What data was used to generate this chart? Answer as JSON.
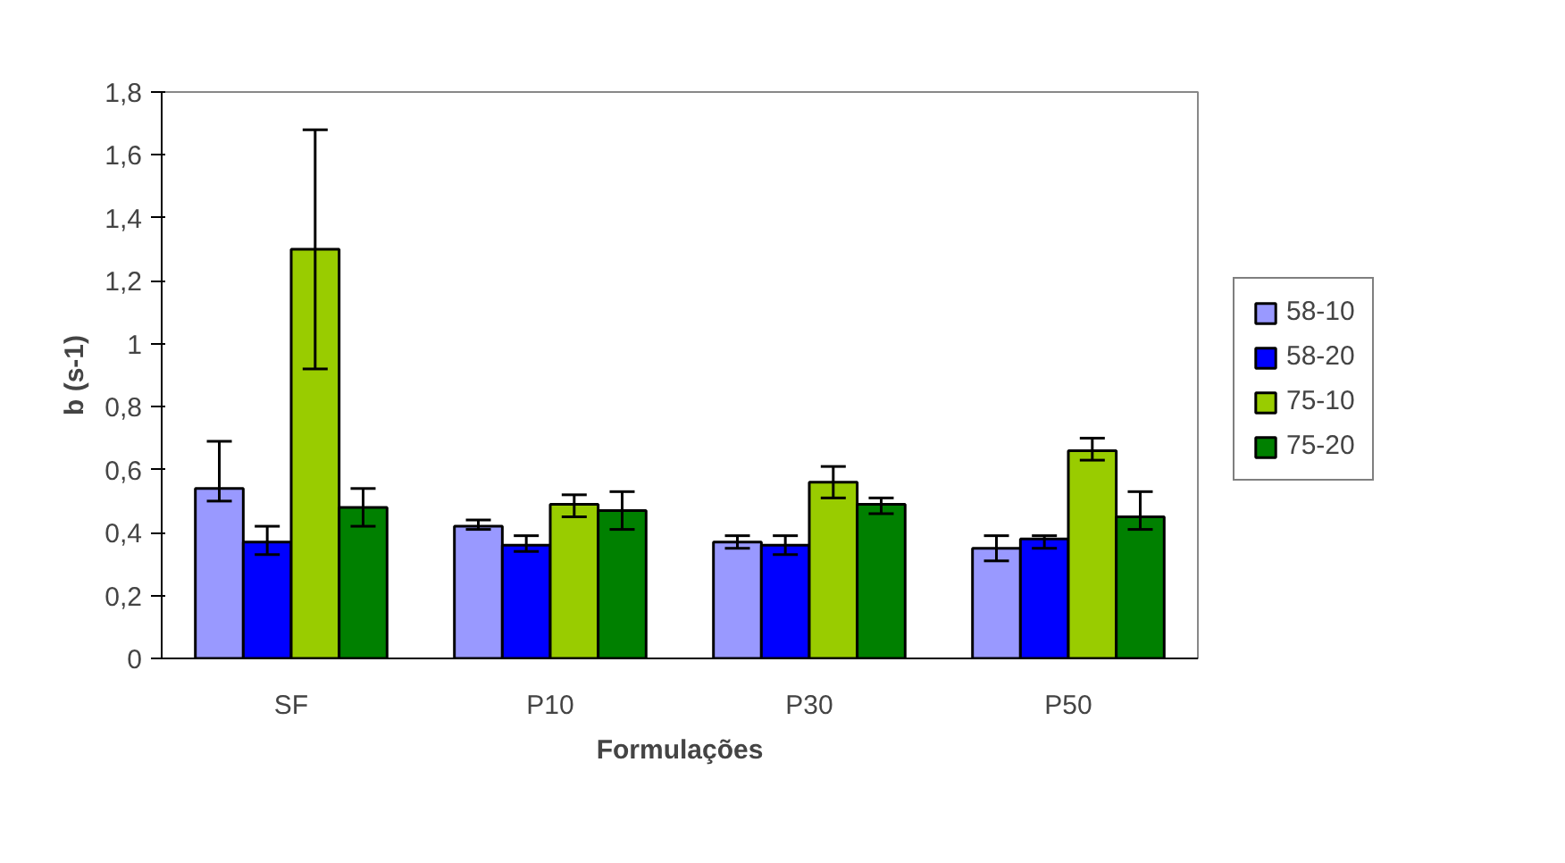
{
  "chart_data": {
    "type": "bar",
    "xlabel": "Formulações",
    "ylabel": "b (s-1)",
    "categories": [
      "SF",
      "P10",
      "P30",
      "P50"
    ],
    "ylim": [
      0,
      1.8
    ],
    "yticks": [
      0,
      {
        "value": 0.2,
        "label": "0,2"
      },
      {
        "value": 0.4,
        "label": "0,4"
      },
      {
        "value": 0.6,
        "label": "0,6"
      },
      {
        "value": 0.8,
        "label": "0,8"
      },
      1,
      {
        "value": 1.2,
        "label": "1,2"
      },
      {
        "value": 1.4,
        "label": "1,4"
      },
      {
        "value": 1.6,
        "label": "1,6"
      },
      {
        "value": 1.8,
        "label": "1,8"
      }
    ],
    "series": [
      {
        "name": "58-10",
        "color": "#9999ff",
        "values": [
          0.54,
          0.42,
          0.37,
          0.35
        ],
        "errors": [
          [
            0.5,
            0.69
          ],
          [
            0.41,
            0.44
          ],
          [
            0.35,
            0.39
          ],
          [
            0.31,
            0.39
          ]
        ]
      },
      {
        "name": "58-20",
        "color": "#0000ff",
        "values": [
          0.37,
          0.36,
          0.36,
          0.38
        ],
        "errors": [
          [
            0.33,
            0.42
          ],
          [
            0.34,
            0.39
          ],
          [
            0.33,
            0.39
          ],
          [
            0.35,
            0.39
          ]
        ]
      },
      {
        "name": "75-10",
        "color": "#99cc00",
        "values": [
          1.3,
          0.49,
          0.56,
          0.66
        ],
        "errors": [
          [
            0.92,
            1.68
          ],
          [
            0.45,
            0.52
          ],
          [
            0.51,
            0.61
          ],
          [
            0.63,
            0.7
          ]
        ]
      },
      {
        "name": "75-20",
        "color": "#008000",
        "values": [
          0.48,
          0.47,
          0.49,
          0.45
        ],
        "errors": [
          [
            0.42,
            0.54
          ],
          [
            0.41,
            0.53
          ],
          [
            0.46,
            0.51
          ],
          [
            0.41,
            0.53
          ]
        ]
      }
    ],
    "grid": false,
    "legend": "right"
  }
}
